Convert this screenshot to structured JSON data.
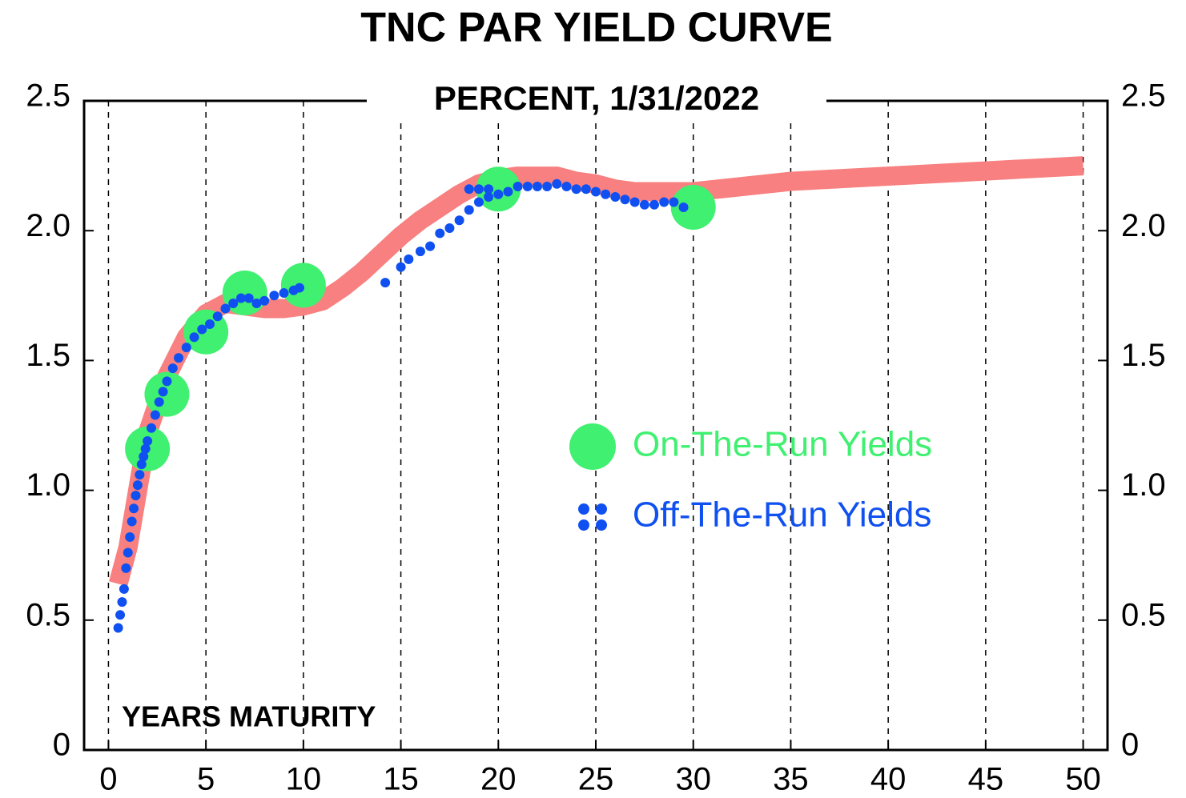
{
  "chart_data": {
    "type": "line",
    "title": "TNC PAR YIELD CURVE",
    "subtitle": "PERCENT, 1/31/2022",
    "x_label": "YEARS MATURITY",
    "xlim": [
      -1.25,
      51.25
    ],
    "ylim": [
      0,
      2.5
    ],
    "xticks": [
      0,
      5,
      10,
      15,
      20,
      25,
      30,
      35,
      40,
      45,
      50
    ],
    "yticks": [
      0,
      0.5,
      {
        "value": 1,
        "label": "1.0"
      },
      1.5,
      {
        "value": 2,
        "label": "2.0"
      },
      2.5
    ],
    "grid": "x",
    "series": [
      {
        "type": "line",
        "color": "#f88080",
        "x": [
          0.5,
          1,
          2,
          3,
          4,
          5,
          6,
          7,
          8,
          9,
          10,
          11,
          12,
          13,
          14,
          15,
          16,
          17,
          18,
          19,
          20,
          21,
          22,
          23,
          24,
          25,
          26,
          27,
          28,
          29,
          30,
          35,
          40,
          45,
          50
        ],
        "values": [
          0.64,
          0.78,
          1.22,
          1.44,
          1.59,
          1.68,
          1.72,
          1.71,
          1.7,
          1.7,
          1.71,
          1.73,
          1.78,
          1.84,
          1.91,
          1.98,
          2.04,
          2.09,
          2.14,
          2.18,
          2.2,
          2.21,
          2.21,
          2.21,
          2.19,
          2.18,
          2.16,
          2.15,
          2.15,
          2.15,
          2.15,
          2.19,
          2.21,
          2.23,
          2.25
        ]
      },
      {
        "type": "scatter",
        "name": "On-The-Run Yields",
        "color": "#40f070",
        "x": [
          2,
          3,
          5,
          7,
          10,
          20,
          30
        ],
        "values": [
          1.16,
          1.37,
          1.61,
          1.76,
          1.79,
          2.16,
          2.09
        ]
      },
      {
        "type": "scatter",
        "name": "Off-The-Run Yields",
        "color": "#1050f0",
        "x": [
          0.5,
          0.6,
          0.7,
          0.8,
          0.9,
          1.0,
          1.1,
          1.2,
          1.3,
          1.4,
          1.5,
          1.6,
          1.7,
          1.8,
          1.9,
          2.0,
          2.2,
          2.4,
          2.6,
          2.8,
          3.0,
          3.3,
          3.6,
          4.0,
          4.4,
          4.8,
          5.2,
          5.6,
          6.0,
          6.4,
          6.8,
          7.2,
          7.6,
          8.0,
          8.5,
          9.0,
          9.5,
          9.8,
          14.2,
          15.0,
          15.4,
          16.0,
          16.5,
          17.0,
          17.5,
          18.0,
          18.5,
          18.5,
          19.0,
          19.0,
          19.5,
          19.5,
          20.0,
          20.5,
          21.0,
          21.5,
          22.0,
          22.5,
          23.0,
          23.5,
          24.0,
          24.5,
          25.0,
          25.5,
          26.0,
          26.5,
          27.0,
          27.5,
          28.0,
          28.5,
          29.0,
          29.5
        ],
        "values": [
          0.47,
          0.52,
          0.57,
          0.62,
          0.7,
          0.76,
          0.82,
          0.88,
          0.93,
          0.98,
          1.02,
          1.06,
          1.1,
          1.13,
          1.16,
          1.19,
          1.24,
          1.29,
          1.34,
          1.38,
          1.42,
          1.47,
          1.51,
          1.55,
          1.59,
          1.62,
          1.64,
          1.67,
          1.7,
          1.72,
          1.74,
          1.74,
          1.72,
          1.73,
          1.75,
          1.76,
          1.77,
          1.78,
          1.8,
          1.86,
          1.89,
          1.92,
          1.94,
          1.99,
          2.01,
          2.04,
          2.08,
          2.16,
          2.11,
          2.16,
          2.13,
          2.16,
          2.14,
          2.15,
          2.17,
          2.17,
          2.17,
          2.17,
          2.18,
          2.17,
          2.16,
          2.16,
          2.15,
          2.14,
          2.13,
          2.12,
          2.11,
          2.1,
          2.1,
          2.11,
          2.11,
          2.09
        ]
      }
    ]
  }
}
